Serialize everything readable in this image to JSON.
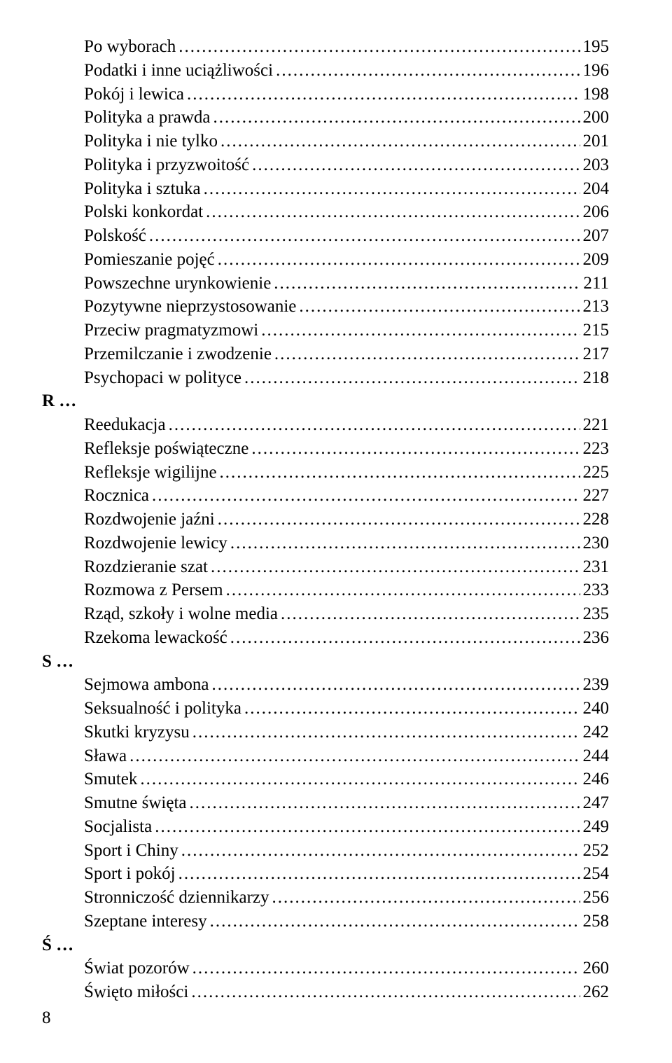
{
  "toc": {
    "entries": [
      {
        "type": "item",
        "title": "Po wyborach",
        "page": "195"
      },
      {
        "type": "item",
        "title": "Podatki i inne uciążliwości",
        "page": "196"
      },
      {
        "type": "item",
        "title": "Pokój i lewica",
        "page": "198"
      },
      {
        "type": "item",
        "title": "Polityka a prawda",
        "page": "200"
      },
      {
        "type": "item",
        "title": "Polityka i nie tylko",
        "page": "201"
      },
      {
        "type": "item",
        "title": "Polityka i przyzwoitość",
        "page": "203"
      },
      {
        "type": "item",
        "title": "Polityka i sztuka",
        "page": "204"
      },
      {
        "type": "item",
        "title": "Polski konkordat",
        "page": "206"
      },
      {
        "type": "item",
        "title": "Polskość",
        "page": "207"
      },
      {
        "type": "item",
        "title": "Pomieszanie pojęć",
        "page": "209"
      },
      {
        "type": "item",
        "title": "Powszechne urynkowienie",
        "page": "211"
      },
      {
        "type": "item",
        "title": "Pozytywne nieprzystosowanie",
        "page": "213"
      },
      {
        "type": "item",
        "title": "Przeciw pragmatyzmowi",
        "page": "215"
      },
      {
        "type": "item",
        "title": "Przemilczanie i zwodzenie",
        "page": "217"
      },
      {
        "type": "item",
        "title": "Psychopaci w polityce",
        "page": "218"
      },
      {
        "type": "section",
        "letter": "R …"
      },
      {
        "type": "item",
        "title": "Reedukacja",
        "page": "221"
      },
      {
        "type": "item",
        "title": "Refleksje poświąteczne",
        "page": "223"
      },
      {
        "type": "item",
        "title": "Refleksje wigilijne",
        "page": "225"
      },
      {
        "type": "item",
        "title": "Rocznica",
        "page": "227"
      },
      {
        "type": "item",
        "title": "Rozdwojenie jaźni",
        "page": "228"
      },
      {
        "type": "item",
        "title": "Rozdwojenie lewicy",
        "page": "230"
      },
      {
        "type": "item",
        "title": "Rozdzieranie szat",
        "page": "231"
      },
      {
        "type": "item",
        "title": "Rozmowa z Persem",
        "page": "233"
      },
      {
        "type": "item",
        "title": "Rząd, szkoły i wolne media",
        "page": "235"
      },
      {
        "type": "item",
        "title": "Rzekoma lewackość",
        "page": "236"
      },
      {
        "type": "section",
        "letter": "S …"
      },
      {
        "type": "item",
        "title": "Sejmowa ambona",
        "page": "239"
      },
      {
        "type": "item",
        "title": "Seksualność i polityka",
        "page": "240"
      },
      {
        "type": "item",
        "title": "Skutki kryzysu",
        "page": "242"
      },
      {
        "type": "item",
        "title": "Sława",
        "page": "244"
      },
      {
        "type": "item",
        "title": "Smutek",
        "page": "246"
      },
      {
        "type": "item",
        "title": "Smutne święta",
        "page": "247"
      },
      {
        "type": "item",
        "title": "Socjalista",
        "page": "249"
      },
      {
        "type": "item",
        "title": "Sport i Chiny",
        "page": "252"
      },
      {
        "type": "item",
        "title": "Sport i pokój",
        "page": "254"
      },
      {
        "type": "item",
        "title": "Stronniczość dziennikarzy",
        "page": "256"
      },
      {
        "type": "item",
        "title": "Szeptane interesy",
        "page": "258"
      },
      {
        "type": "section",
        "letter": "Ś …"
      },
      {
        "type": "item",
        "title": "Świat pozorów",
        "page": "260"
      },
      {
        "type": "item",
        "title": "Święto miłości",
        "page": "262"
      }
    ]
  },
  "pageNumber": "8"
}
